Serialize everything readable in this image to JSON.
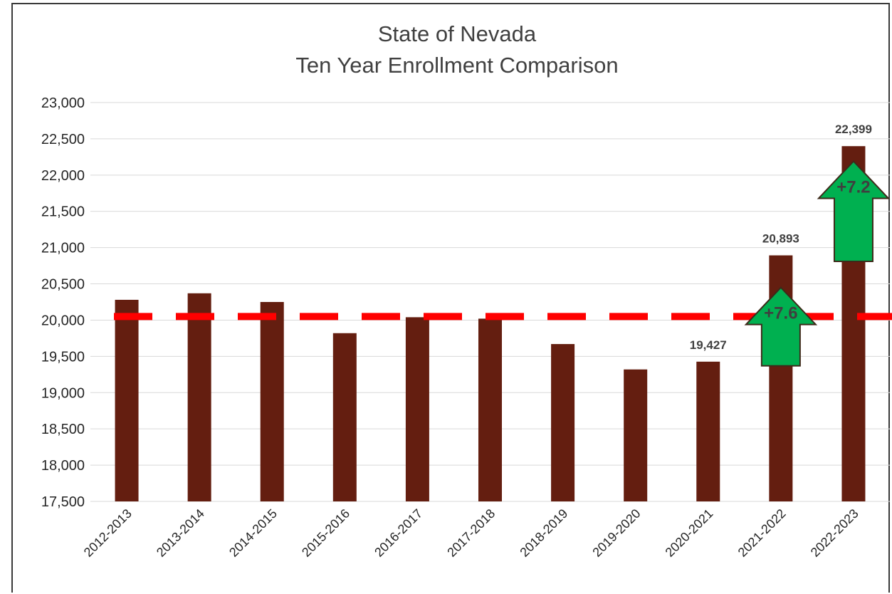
{
  "chart_data": {
    "type": "bar",
    "title": [
      "State of Nevada",
      "Ten Year Enrollment Comparison"
    ],
    "xlabel": "",
    "ylabel": "",
    "categories": [
      "2012-2013",
      "2013-2014",
      "2014-2015",
      "2015-2016",
      "2016-2017",
      "2017-2018",
      "2018-2019",
      "2019-2020",
      "2020-2021",
      "2021-2022",
      "2022-2023"
    ],
    "values": [
      20280,
      20370,
      20250,
      19820,
      20040,
      20020,
      19670,
      19320,
      19427,
      20893,
      22399
    ],
    "data_labels": {
      "8": "19,427",
      "9": "20,893",
      "10": "22,399"
    },
    "ylim": [
      17500,
      23000
    ],
    "yticks": [
      17500,
      18000,
      18500,
      19000,
      19500,
      20000,
      20500,
      21000,
      21500,
      22000,
      22500,
      23000
    ],
    "ytick_labels": [
      "17,500",
      "18,000",
      "18,500",
      "19,000",
      "19,500",
      "20,000",
      "20,500",
      "21,000",
      "21,500",
      "22,000",
      "22,500",
      "23,000"
    ],
    "grid": true,
    "bar_color": "#641E10",
    "reference_line": {
      "value": 20050,
      "color": "#FF0000",
      "style": "dashed"
    },
    "annotations": [
      {
        "category_index": 9,
        "text": "+7.6",
        "shape": "up-arrow",
        "color": "#00B050",
        "base_value": 19370,
        "tip_value": 20450
      },
      {
        "category_index": 10,
        "text": "+7.2",
        "shape": "up-arrow",
        "color": "#00B050",
        "base_value": 20810,
        "tip_value": 22190
      }
    ]
  }
}
